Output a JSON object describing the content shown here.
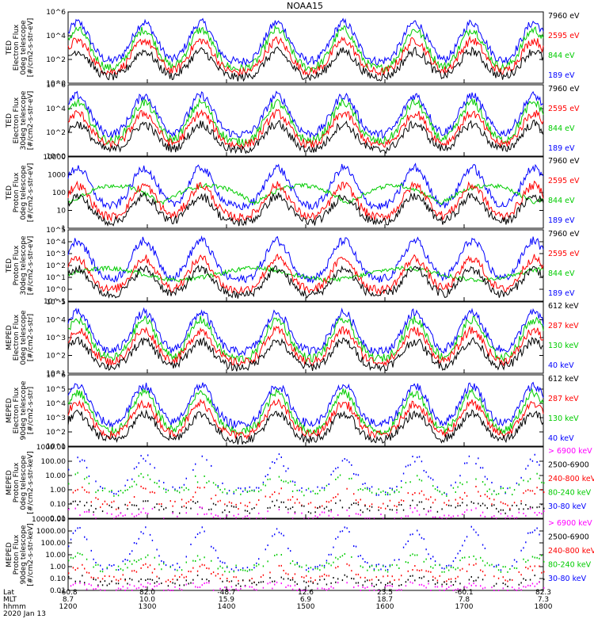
{
  "title": "NOAA15",
  "colors": {
    "black": "#000000",
    "blue": "#0000ff",
    "red": "#ff0000",
    "green": "#00cc00",
    "magenta": "#ff00ff"
  },
  "chart_data": [
    {
      "type": "line",
      "ylabel": [
        "TED",
        "Electron Flux",
        "0deg telescope",
        "[#/cm2-s-str-eV]"
      ],
      "ylog": true,
      "ylim_exp": [
        0,
        6
      ],
      "tick_labels": [
        "10^0",
        "10^2",
        "10^4",
        "10^6"
      ],
      "legend": [
        {
          "label": "7960 eV",
          "color": "#000000"
        },
        {
          "label": "2595 eV",
          "color": "#ff0000"
        },
        {
          "label": "844 eV",
          "color": "#00cc00"
        },
        {
          "label": "189 eV",
          "color": "#0000ff"
        }
      ]
    },
    {
      "type": "line",
      "ylabel": [
        "TED",
        "Electron Flux",
        "30deg telescope",
        "[#/cm2-s-str-eV]"
      ],
      "ylog": true,
      "ylim_exp": [
        0,
        6
      ],
      "tick_labels": [
        "10^0",
        "10^2",
        "10^4",
        "10^6"
      ],
      "legend": [
        {
          "label": "7960 eV",
          "color": "#000000"
        },
        {
          "label": "2595 eV",
          "color": "#ff0000"
        },
        {
          "label": "844 eV",
          "color": "#00cc00"
        },
        {
          "label": "189 eV",
          "color": "#0000ff"
        }
      ]
    },
    {
      "type": "line",
      "ylabel": [
        "TED",
        "Proton Flux",
        "0deg telescope",
        "[#/cm2-s-str-eV]"
      ],
      "ylog": true,
      "ylim_exp": [
        0,
        4
      ],
      "tick_labels": [
        "1",
        "10",
        "100",
        "1000",
        "10000"
      ],
      "legend": [
        {
          "label": "7960 eV",
          "color": "#000000"
        },
        {
          "label": "2595 eV",
          "color": "#ff0000"
        },
        {
          "label": "844 eV",
          "color": "#00cc00"
        },
        {
          "label": "189 eV",
          "color": "#0000ff"
        }
      ]
    },
    {
      "type": "line",
      "ylabel": [
        "TED",
        "Proton Flux",
        "30deg telescope",
        "[#/cm2-s-str-eV]"
      ],
      "ylog": true,
      "ylim_exp": [
        -1,
        5
      ],
      "tick_labels": [
        "10^-1",
        "10^0",
        "10^1",
        "10^2",
        "10^3",
        "10^4",
        "10^5"
      ],
      "legend": [
        {
          "label": "7960 eV",
          "color": "#000000"
        },
        {
          "label": "2595 eV",
          "color": "#ff0000"
        },
        {
          "label": "844 eV",
          "color": "#00cc00"
        },
        {
          "label": "189 eV",
          "color": "#0000ff"
        }
      ]
    },
    {
      "type": "line",
      "ylabel": [
        "MEPED",
        "Electron Flux",
        "0deg telescope",
        "[#/cm2-s-str]"
      ],
      "ylog": true,
      "ylim_exp": [
        1,
        5
      ],
      "tick_labels": [
        "10^1",
        "10^2",
        "10^3",
        "10^4",
        "10^5"
      ],
      "legend": [
        {
          "label": "612 keV",
          "color": "#000000"
        },
        {
          "label": "287 keV",
          "color": "#ff0000"
        },
        {
          "label": "130 keV",
          "color": "#00cc00"
        },
        {
          "label": "40 keV",
          "color": "#0000ff"
        }
      ]
    },
    {
      "type": "line",
      "ylabel": [
        "MEPED",
        "Electron Flux",
        "90deg telescope",
        "[#/cm2-s-str]"
      ],
      "ylog": true,
      "ylim_exp": [
        1,
        6
      ],
      "tick_labels": [
        "10^1",
        "10^2",
        "10^3",
        "10^4",
        "10^5",
        "10^6"
      ],
      "legend": [
        {
          "label": "612 keV",
          "color": "#000000"
        },
        {
          "label": "287 keV",
          "color": "#ff0000"
        },
        {
          "label": "130 keV",
          "color": "#00cc00"
        },
        {
          "label": "40 keV",
          "color": "#0000ff"
        }
      ]
    },
    {
      "type": "line",
      "ylabel": [
        "MEPED",
        "Proton Flux",
        "0deg telescope",
        "[#/cm2-s-str-keV]"
      ],
      "ylog": true,
      "ylim_exp": [
        -2,
        3
      ],
      "tick_labels": [
        "0.01",
        "0.10",
        "1.00",
        "10.00",
        "100.00",
        "1000.00"
      ],
      "legend": [
        {
          "label": "> 6900 keV",
          "color": "#ff00ff"
        },
        {
          "label": "2500-6900",
          "color": "#000000"
        },
        {
          "label": "240-800 keV",
          "color": "#ff0000"
        },
        {
          "label": "80-240 keV",
          "color": "#00cc00"
        },
        {
          "label": "30-80 keV",
          "color": "#0000ff"
        }
      ]
    },
    {
      "type": "line",
      "ylabel": [
        "MEPED",
        "Proton Flux",
        "90deg telescope",
        "[#/cm2-s-str-keV]"
      ],
      "ylog": true,
      "ylim_exp": [
        -2,
        4
      ],
      "tick_labels": [
        "0.01",
        "0.10",
        "1.00",
        "10.00",
        "100.00",
        "1000.00",
        "10000.00"
      ],
      "legend": [
        {
          "label": "> 6900 keV",
          "color": "#ff00ff"
        },
        {
          "label": "2500-6900",
          "color": "#000000"
        },
        {
          "label": "240-800 keV",
          "color": "#ff0000"
        },
        {
          "label": "80-240 keV",
          "color": "#00cc00"
        },
        {
          "label": "30-80 keV",
          "color": "#0000ff"
        }
      ]
    }
  ],
  "xaxis": {
    "row_labels": [
      "Lat",
      "MLT",
      "hhmm"
    ],
    "date": "2020 Jan 13",
    "ticks": [
      {
        "lat": "-60.8",
        "mlt": "8.7",
        "hhmm": "1200"
      },
      {
        "lat": "82.0",
        "mlt": "10.0",
        "hhmm": "1300"
      },
      {
        "lat": "-48.7",
        "mlt": "15.9",
        "hhmm": "1400"
      },
      {
        "lat": "12.6",
        "mlt": "6.9",
        "hhmm": "1500"
      },
      {
        "lat": "23.5",
        "mlt": "18.7",
        "hhmm": "1600"
      },
      {
        "lat": "-60.1",
        "mlt": "7.8",
        "hhmm": "1700"
      },
      {
        "lat": "82.3",
        "mlt": "7.3",
        "hhmm": "1800"
      }
    ]
  }
}
